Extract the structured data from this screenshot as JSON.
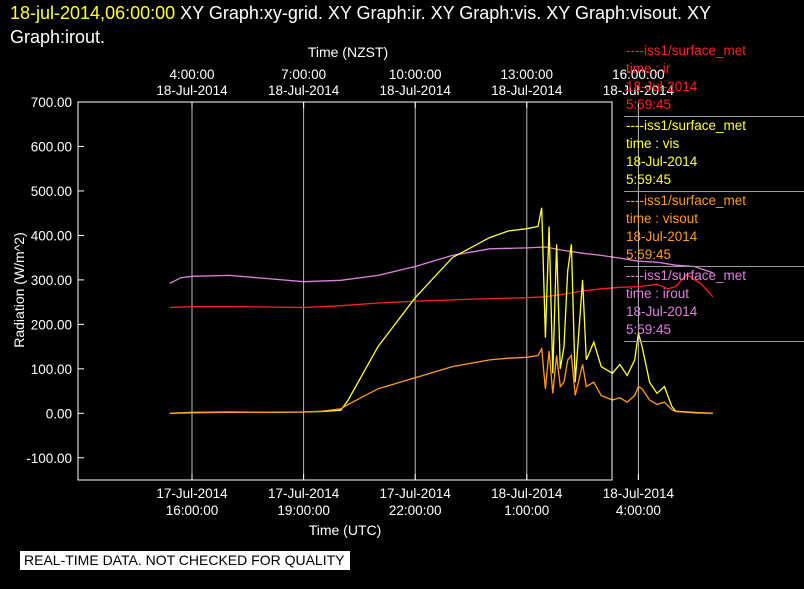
{
  "header": {
    "timestamp": "18-jul-2014,06:00:00",
    "graphs": " XY Graph:xy-grid.  XY Graph:ir.  XY Graph:vis.  XY Graph:visout.  XY Graph:irout."
  },
  "banner": "REAL-TIME DATA. NOT CHECKED FOR QUALITY",
  "legend": [
    {
      "name": "----iss1/surface_met",
      "field": "time : ir",
      "date": "18-Jul-2014",
      "time": "5:59:45",
      "color": "#ff2020"
    },
    {
      "name": "----iss1/surface_met",
      "field": "time : vis",
      "date": "18-Jul-2014",
      "time": "5:59:45",
      "color": "#ffff33"
    },
    {
      "name": "----iss1/surface_met",
      "field": "time : visout",
      "date": "18-Jul-2014",
      "time": "5:59:45",
      "color": "#ff9a1f"
    },
    {
      "name": "----iss1/surface_met",
      "field": "time : irout",
      "date": "18-Jul-2014",
      "time": "5:59:45",
      "color": "#e080e0"
    }
  ],
  "chart_data": {
    "type": "line",
    "xlabel_top": "Time (NZST)",
    "xlabel": "Time (UTC)",
    "ylabel": "Radiation (W/m^2)",
    "x_unit": "hours since 17-Jul-2014 16:00 UTC",
    "xlim": [
      -1.1,
      14.1
    ],
    "ylim": [
      -150,
      700
    ],
    "grid": true,
    "yticks": [
      "700.00",
      "600.00",
      "500.00",
      "400.00",
      "300.00",
      "200.00",
      "100.00",
      "0.00",
      "-100.00"
    ],
    "yticks_values": [
      700,
      600,
      500,
      400,
      300,
      200,
      100,
      0,
      -100
    ],
    "xticks_bottom": [
      {
        "x": 0,
        "date": "17-Jul-2014",
        "time": "16:00:00"
      },
      {
        "x": 3,
        "date": "17-Jul-2014",
        "time": "19:00:00"
      },
      {
        "x": 6,
        "date": "17-Jul-2014",
        "time": "22:00:00"
      },
      {
        "x": 9,
        "date": "18-Jul-2014",
        "time": "1:00:00"
      },
      {
        "x": 12,
        "date": "18-Jul-2014",
        "time": "4:00:00"
      }
    ],
    "xticks_top": [
      {
        "x": 0,
        "time": "4:00:00",
        "date": "18-Jul-2014"
      },
      {
        "x": 3,
        "time": "7:00:00",
        "date": "18-Jul-2014"
      },
      {
        "x": 6,
        "time": "10:00:00",
        "date": "18-Jul-2014"
      },
      {
        "x": 9,
        "time": "13:00:00",
        "date": "18-Jul-2014"
      },
      {
        "x": 12,
        "time": "16:00:00",
        "date": "18-Jul-2014"
      }
    ],
    "series": [
      {
        "name": "irout",
        "color": "#e080e0",
        "x": [
          -0.6,
          -0.3,
          0,
          1,
          2,
          3,
          4,
          5,
          6,
          7,
          8,
          9,
          9.5,
          10,
          10.5,
          11,
          11.5,
          12,
          12.5,
          13,
          13.5,
          14
        ],
        "y": [
          292,
          305,
          308,
          310,
          303,
          296,
          299,
          310,
          330,
          355,
          370,
          372,
          374,
          366,
          360,
          355,
          349,
          342,
          340,
          333,
          330,
          316
        ]
      },
      {
        "name": "ir",
        "color": "#ff2020",
        "x": [
          -0.6,
          0,
          1,
          2,
          3,
          4,
          5,
          6,
          7,
          8,
          9,
          9.5,
          10,
          10.5,
          11,
          11.5,
          12,
          12.5,
          12.8,
          13,
          13.3,
          13.7,
          14
        ],
        "y": [
          238,
          240,
          240,
          239,
          238,
          242,
          248,
          252,
          255,
          258,
          260,
          262,
          268,
          275,
          280,
          283,
          285,
          290,
          280,
          285,
          312,
          290,
          262
        ]
      },
      {
        "name": "vis",
        "color": "#ffff33",
        "x": [
          -0.6,
          0,
          1,
          2,
          3,
          3.5,
          4,
          4.2,
          5,
          6,
          7,
          8,
          8.5,
          9,
          9.3,
          9.4,
          9.5,
          9.6,
          9.7,
          9.8,
          9.9,
          10,
          10.1,
          10.2,
          10.3,
          10.5,
          10.6,
          10.8,
          11,
          11.3,
          11.5,
          11.7,
          11.9,
          12,
          12.1,
          12.3,
          12.5,
          12.7,
          12.9,
          13,
          13.5,
          14
        ],
        "y": [
          0,
          2,
          3,
          2,
          3,
          4,
          7,
          30,
          150,
          260,
          350,
          395,
          410,
          415,
          420,
          462,
          170,
          420,
          90,
          380,
          100,
          150,
          320,
          380,
          70,
          300,
          120,
          160,
          105,
          90,
          110,
          85,
          120,
          180,
          150,
          70,
          45,
          60,
          15,
          5,
          2,
          0
        ]
      },
      {
        "name": "visout",
        "color": "#ff9a1f",
        "x": [
          -0.6,
          0,
          1,
          2,
          3,
          3.5,
          4,
          4.2,
          5,
          6,
          7,
          8,
          8.5,
          9,
          9.3,
          9.4,
          9.5,
          9.6,
          9.7,
          9.8,
          9.9,
          10,
          10.1,
          10.2,
          10.3,
          10.5,
          10.6,
          10.8,
          11,
          11.3,
          11.5,
          11.7,
          11.9,
          12,
          12.1,
          12.3,
          12.5,
          12.7,
          12.9,
          13,
          13.5,
          14
        ],
        "y": [
          0,
          1,
          2,
          2,
          3,
          5,
          10,
          20,
          55,
          80,
          105,
          120,
          124,
          126,
          130,
          145,
          55,
          140,
          45,
          130,
          60,
          70,
          120,
          130,
          40,
          110,
          60,
          70,
          40,
          30,
          35,
          25,
          40,
          60,
          55,
          30,
          20,
          25,
          8,
          4,
          1,
          0
        ]
      }
    ]
  }
}
